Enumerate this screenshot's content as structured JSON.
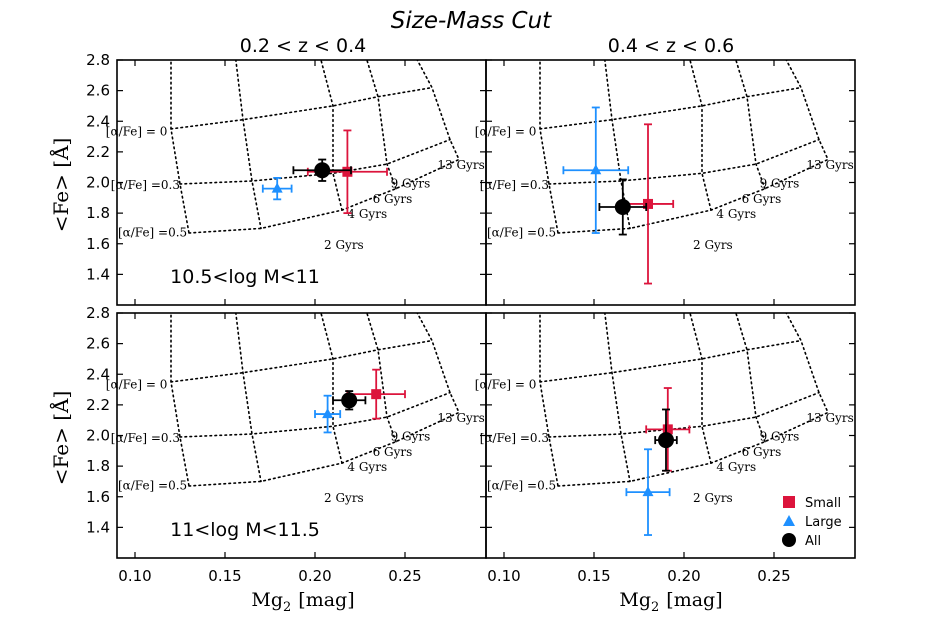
{
  "figure": {
    "title": "Size-Mass Cut",
    "col_titles": [
      "0.2 < z < 0.4",
      "0.4 < z < 0.6"
    ],
    "row_labels": [
      "10.5<log M<11",
      "11<log M<11.5"
    ],
    "xlabel_main": "Mg",
    "xlabel_sub": "2",
    "xlabel_unit": "[mag]",
    "ylabel": "<Fe> [Å]"
  },
  "legend": {
    "items": [
      {
        "label": "Small",
        "color": "#dc143c",
        "marker": "square"
      },
      {
        "label": "Large",
        "color": "#1e90ff",
        "marker": "triangle"
      },
      {
        "label": "All",
        "color": "#000000",
        "marker": "circle"
      }
    ]
  },
  "grid_labels": {
    "alpha": [
      "[α/Fe] = 0",
      "[α/Fe] =0.3",
      "[α/Fe] =0.5"
    ],
    "ages": [
      "2 Gyrs",
      "4 Gyrs",
      "6 Gyrs",
      "9 Gyrs",
      "13 Gyrs"
    ]
  },
  "chart_data": {
    "type": "scatter",
    "xlim": [
      0.09,
      0.295
    ],
    "ylim": [
      1.2,
      2.8
    ],
    "xticks": [
      0.1,
      0.15,
      0.2,
      0.25
    ],
    "xtick_labels": [
      "0.10",
      "0.15",
      "0.20",
      "0.25"
    ],
    "yticks": [
      1.4,
      1.6,
      1.8,
      2.0,
      2.2,
      2.4,
      2.6,
      2.8
    ],
    "ytick_labels": [
      "1.4",
      "1.6",
      "1.8",
      "2.0",
      "2.2",
      "2.4",
      "2.6",
      "2.8"
    ],
    "model_grid": {
      "alpha_lines": [
        [
          [
            0.12,
            2.35
          ],
          [
            0.16,
            2.41
          ],
          [
            0.21,
            2.5
          ],
          [
            0.235,
            2.56
          ],
          [
            0.265,
            2.62
          ]
        ],
        [
          [
            0.125,
            1.99
          ],
          [
            0.165,
            2.01
          ],
          [
            0.21,
            2.06
          ],
          [
            0.24,
            2.12
          ],
          [
            0.275,
            2.28
          ]
        ],
        [
          [
            0.13,
            1.67
          ],
          [
            0.17,
            1.7
          ],
          [
            0.215,
            1.82
          ],
          [
            0.245,
            1.96
          ],
          [
            0.28,
            2.15
          ]
        ]
      ],
      "age_lines": [
        [
          [
            0.12,
            2.85
          ],
          [
            0.12,
            2.35
          ],
          [
            0.125,
            1.99
          ],
          [
            0.13,
            1.67
          ]
        ],
        [
          [
            0.155,
            2.9
          ],
          [
            0.16,
            2.41
          ],
          [
            0.165,
            2.01
          ],
          [
            0.17,
            1.7
          ]
        ],
        [
          [
            0.2,
            2.95
          ],
          [
            0.21,
            2.5
          ],
          [
            0.21,
            2.06
          ],
          [
            0.215,
            1.82
          ]
        ],
        [
          [
            0.225,
            2.95
          ],
          [
            0.235,
            2.56
          ],
          [
            0.24,
            2.12
          ],
          [
            0.245,
            1.96
          ]
        ],
        [
          [
            0.25,
            2.95
          ],
          [
            0.265,
            2.62
          ],
          [
            0.275,
            2.28
          ],
          [
            0.28,
            2.15
          ]
        ]
      ]
    },
    "panels": [
      {
        "id": "top-left",
        "redshift": "0.2 < z < 0.4",
        "mass_bin": "10.5<log M<11",
        "series": [
          {
            "name": "Small",
            "x": 0.218,
            "y": 2.07,
            "xerr": 0.022,
            "yerr": 0.27
          },
          {
            "name": "Large",
            "x": 0.179,
            "y": 1.96,
            "xerr": 0.008,
            "yerr": 0.07
          },
          {
            "name": "All",
            "x": 0.204,
            "y": 2.08,
            "xerr": 0.016,
            "yerr": 0.07
          }
        ]
      },
      {
        "id": "top-right",
        "redshift": "0.4 < z < 0.6",
        "mass_bin": "",
        "series": [
          {
            "name": "Small",
            "x": 0.18,
            "y": 1.86,
            "xerr": 0.014,
            "yerr": 0.52
          },
          {
            "name": "Large",
            "x": 0.151,
            "y": 2.08,
            "xerr": 0.018,
            "yerr": 0.41
          },
          {
            "name": "All",
            "x": 0.166,
            "y": 1.84,
            "xerr": 0.013,
            "yerr": 0.18
          }
        ]
      },
      {
        "id": "bottom-left",
        "redshift": "0.2 < z < 0.4",
        "mass_bin": "11<log M<11.5",
        "series": [
          {
            "name": "Small",
            "x": 0.234,
            "y": 2.27,
            "xerr": 0.016,
            "yerr": 0.16
          },
          {
            "name": "Large",
            "x": 0.207,
            "y": 2.14,
            "xerr": 0.007,
            "yerr": 0.12
          },
          {
            "name": "All",
            "x": 0.219,
            "y": 2.23,
            "xerr": 0.009,
            "yerr": 0.06
          }
        ]
      },
      {
        "id": "bottom-right",
        "redshift": "0.4 < z < 0.6",
        "mass_bin": "",
        "series": [
          {
            "name": "Small",
            "x": 0.191,
            "y": 2.04,
            "xerr": 0.012,
            "yerr": 0.27
          },
          {
            "name": "Large",
            "x": 0.18,
            "y": 1.63,
            "xerr": 0.012,
            "yerr": 0.28
          },
          {
            "name": "All",
            "x": 0.19,
            "y": 1.97,
            "xerr": 0.006,
            "yerr": 0.2
          }
        ]
      }
    ]
  }
}
